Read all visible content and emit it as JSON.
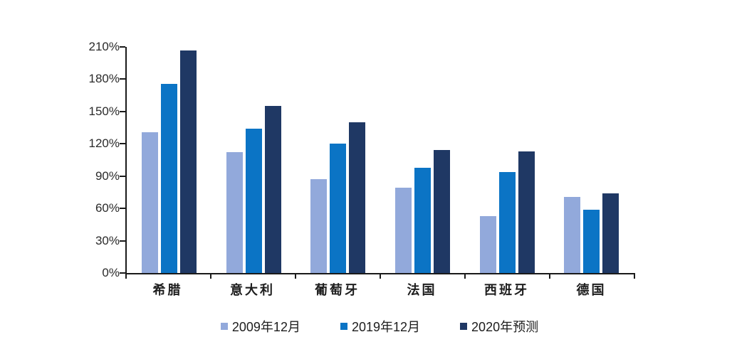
{
  "chart_data": {
    "type": "bar",
    "title": "",
    "categories": [
      "希腊",
      "意大利",
      "葡萄牙",
      "法国",
      "西班牙",
      "德国"
    ],
    "series": [
      {
        "name": "2009年12月",
        "color": "#92A9DB",
        "values": [
          131,
          112,
          87,
          79,
          53,
          71
        ]
      },
      {
        "name": "2019年12月",
        "color": "#0B74C5",
        "values": [
          176,
          134,
          120,
          98,
          94,
          59
        ]
      },
      {
        "name": "2020年预测",
        "color": "#1F3864",
        "values": [
          207,
          155,
          140,
          114,
          113,
          74
        ]
      }
    ],
    "xlabel": "",
    "ylabel": "",
    "ylim": [
      0,
      210
    ],
    "ytick_step": 30,
    "ytick_labels": [
      "0%",
      "30%",
      "60%",
      "90%",
      "120%",
      "150%",
      "180%",
      "210%"
    ],
    "value_suffix": "%",
    "grid": false,
    "legend_position": "bottom",
    "axis_color": "#1a1a1a",
    "background_color": "#ffffff"
  }
}
